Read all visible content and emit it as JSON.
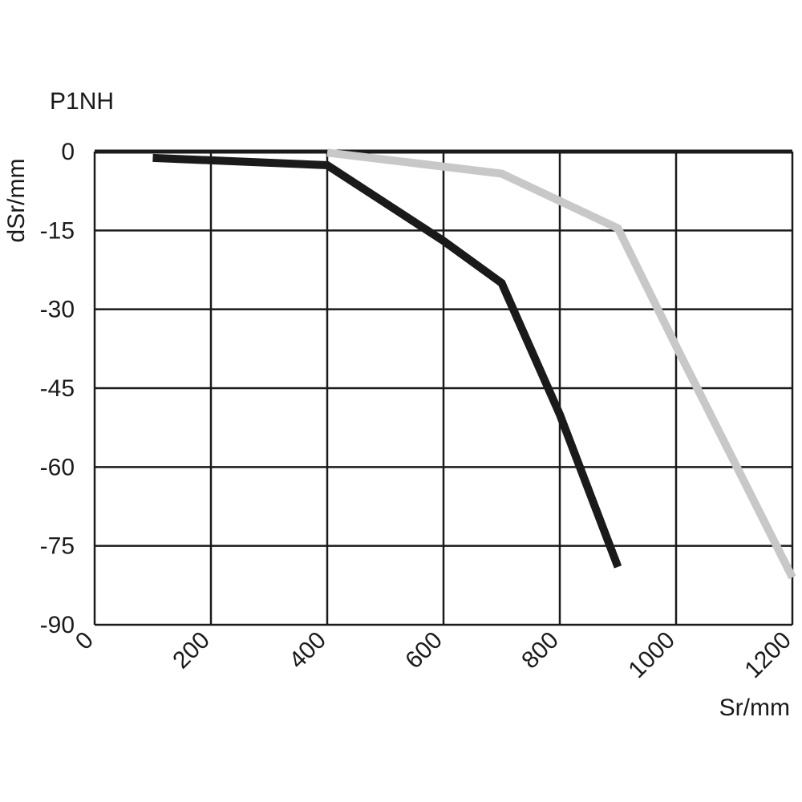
{
  "chart_data": {
    "type": "line",
    "title": "P1NH",
    "xlabel": "Sr/mm",
    "ylabel": "dSr/mm",
    "xlim": [
      0,
      1200
    ],
    "ylim": [
      -90,
      0
    ],
    "x_ticks": [
      0,
      200,
      400,
      600,
      800,
      1000,
      1200
    ],
    "y_ticks": [
      0,
      -15,
      -30,
      -45,
      -60,
      -75,
      -90
    ],
    "grid": true,
    "series": [
      {
        "color": "#1a1a1a",
        "points": [
          [
            100,
            -1.2
          ],
          [
            400,
            -2.6
          ],
          [
            600,
            -17
          ],
          [
            700,
            -25
          ],
          [
            800,
            -50
          ],
          [
            900,
            -79
          ]
        ]
      },
      {
        "color": "#c8c8c8",
        "points": [
          [
            400,
            -0.2
          ],
          [
            700,
            -4.2
          ],
          [
            900,
            -14.6
          ],
          [
            1000,
            -37
          ],
          [
            1200,
            -81
          ]
        ]
      }
    ]
  }
}
